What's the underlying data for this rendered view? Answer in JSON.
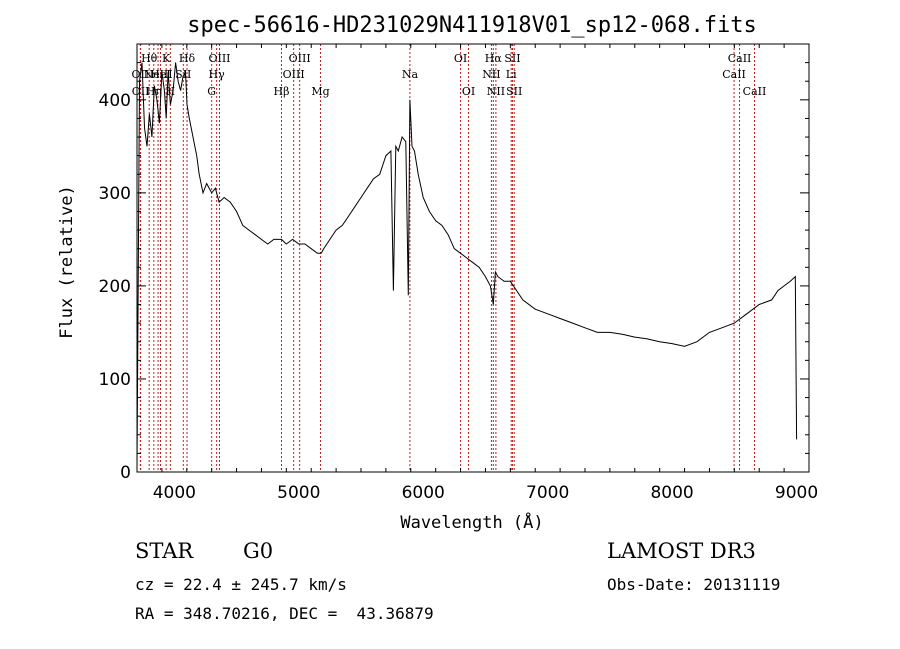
{
  "chart_data": {
    "type": "line",
    "title": "spec-56616-HD231029N411918V01_sp12-068.fits",
    "xlabel": "Wavelength (Å)",
    "ylabel": "Flux (relative)",
    "xlim": [
      3700,
      9100
    ],
    "ylim": [
      0,
      460
    ],
    "x_ticks": [
      4000,
      5000,
      6000,
      7000,
      8000,
      9000
    ],
    "x_tick_labels": [
      "4000",
      "5000",
      "6000",
      "7000",
      "8000",
      "9000"
    ],
    "y_ticks": [
      0,
      100,
      200,
      300,
      400
    ],
    "y_tick_labels": [
      "0",
      "100",
      "200",
      "300",
      "400"
    ],
    "grid": false,
    "line_color": "#000000",
    "marker_color": "#b22222",
    "series": [
      {
        "x": [
          3700,
          3720,
          3740,
          3760,
          3780,
          3800,
          3820,
          3840,
          3860,
          3880,
          3900,
          3920,
          3935,
          3950,
          3968,
          3990,
          4010,
          4030,
          4050,
          4070,
          4090,
          4102,
          4120,
          4150,
          4180,
          4200,
          4230,
          4260,
          4300,
          4330,
          4360,
          4400,
          4450,
          4500,
          4550,
          4600,
          4650,
          4700,
          4750,
          4800,
          4861,
          4900,
          4950,
          5000,
          5050,
          5100,
          5150,
          5180,
          5200,
          5250,
          5300,
          5350,
          5400,
          5450,
          5500,
          5550,
          5600,
          5650,
          5700,
          5740,
          5760,
          5780,
          5800,
          5830,
          5860,
          5880,
          5893,
          5910,
          5930,
          5960,
          6000,
          6050,
          6100,
          6150,
          6200,
          6250,
          6300,
          6350,
          6400,
          6450,
          6500,
          6540,
          6563,
          6580,
          6600,
          6650,
          6700,
          6750,
          6800,
          6900,
          7000,
          7100,
          7200,
          7300,
          7400,
          7500,
          7600,
          7700,
          7800,
          7900,
          8000,
          8100,
          8200,
          8300,
          8400,
          8500,
          8600,
          8700,
          8800,
          8850,
          8900,
          8950,
          8990,
          9000
        ],
        "y": [
          5,
          420,
          440,
          370,
          350,
          385,
          360,
          415,
          400,
          375,
          430,
          410,
          380,
          430,
          395,
          410,
          440,
          420,
          410,
          425,
          430,
          395,
          380,
          360,
          340,
          320,
          300,
          310,
          300,
          305,
          290,
          295,
          290,
          280,
          265,
          260,
          255,
          250,
          245,
          250,
          250,
          245,
          250,
          245,
          245,
          240,
          235,
          235,
          240,
          250,
          260,
          265,
          275,
          285,
          295,
          305,
          315,
          320,
          340,
          345,
          195,
          350,
          345,
          360,
          355,
          190,
          400,
          350,
          345,
          320,
          295,
          280,
          270,
          265,
          255,
          240,
          235,
          230,
          225,
          220,
          210,
          200,
          180,
          215,
          210,
          205,
          205,
          195,
          185,
          175,
          170,
          165,
          160,
          155,
          150,
          150,
          148,
          145,
          143,
          140,
          138,
          135,
          140,
          150,
          155,
          160,
          170,
          180,
          185,
          195,
          200,
          205,
          210,
          35
        ]
      }
    ],
    "lines": [
      {
        "x": 3727,
        "label": "OII",
        "row": 2
      },
      {
        "x": 3729,
        "label": "OII",
        "row": 3
      },
      {
        "x": 3798,
        "label": "Hθ",
        "row": 1
      },
      {
        "x": 3835,
        "label": "Hη",
        "row": 3
      },
      {
        "x": 3869,
        "label": "NeIII",
        "row": 2
      },
      {
        "x": 3889,
        "label": "HeI",
        "row": 2
      },
      {
        "x": 3934,
        "label": "K",
        "row": 1
      },
      {
        "x": 3968,
        "label": "H",
        "row": 3
      },
      {
        "x": 4072,
        "label": "SII",
        "row": 2
      },
      {
        "x": 4102,
        "label": "Hδ",
        "row": 1
      },
      {
        "x": 4300,
        "label": "G",
        "row": 3
      },
      {
        "x": 4340,
        "label": "Hγ",
        "row": 2
      },
      {
        "x": 4363,
        "label": "OIII",
        "row": 1
      },
      {
        "x": 4861,
        "label": "Hβ",
        "row": 3
      },
      {
        "x": 4959,
        "label": "OIII",
        "row": 2
      },
      {
        "x": 5007,
        "label": "OIII",
        "row": 1
      },
      {
        "x": 5175,
        "label": "Mg",
        "row": 3
      },
      {
        "x": 5893,
        "label": "Na",
        "row": 2
      },
      {
        "x": 6300,
        "label": "OI",
        "row": 1
      },
      {
        "x": 6364,
        "label": "OI",
        "row": 3
      },
      {
        "x": 6548,
        "label": "NII",
        "row": 2
      },
      {
        "x": 6563,
        "label": "Hα",
        "row": 1
      },
      {
        "x": 6584,
        "label": "NII",
        "row": 3
      },
      {
        "x": 6707,
        "label": "Li",
        "row": 2
      },
      {
        "x": 6717,
        "label": "SII",
        "row": 1
      },
      {
        "x": 6731,
        "label": "SII",
        "row": 3
      },
      {
        "x": 8498,
        "label": "CaII",
        "row": 2
      },
      {
        "x": 8542,
        "label": "CaII",
        "row": 1
      },
      {
        "x": 8662,
        "label": "CaII",
        "row": 3
      }
    ]
  },
  "info": {
    "class": "STAR",
    "subclass": "G0",
    "survey": "LAMOST DR3",
    "cz": "cz = 22.4 ± 245.7 km/s",
    "obs_date": "Obs-Date: 20131119",
    "radec": "RA = 348.70216, DEC =  43.36879"
  }
}
